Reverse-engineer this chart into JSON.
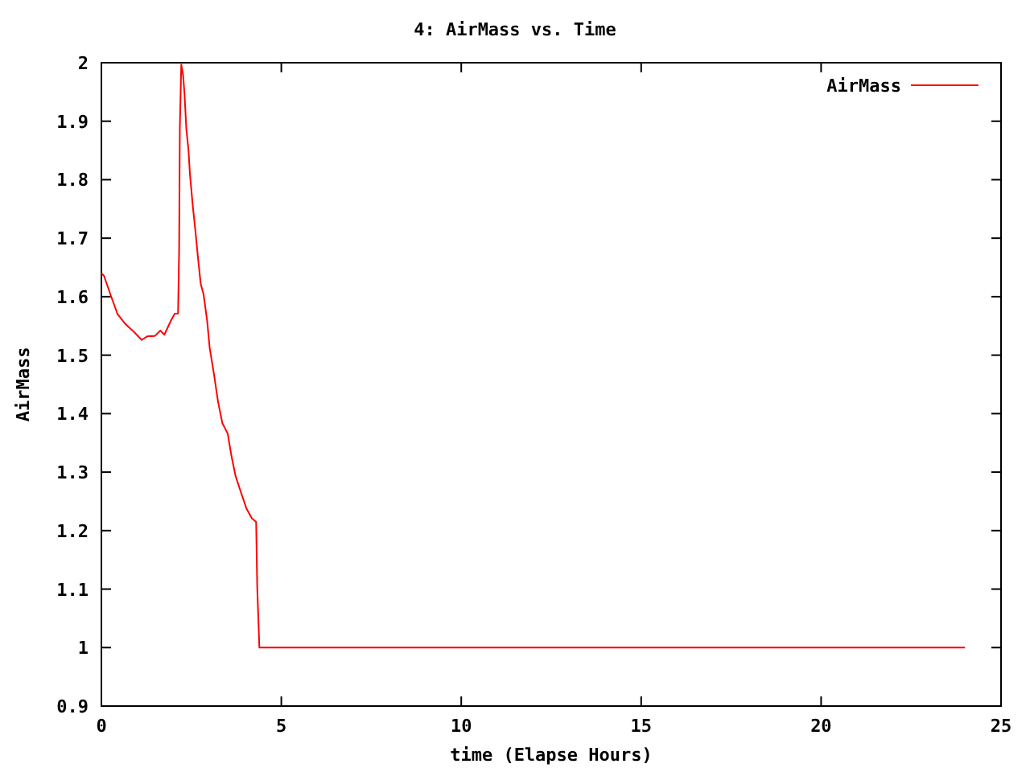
{
  "chart_data": {
    "type": "line",
    "title": "4: AirMass vs. Time",
    "xlabel": "time (Elapse Hours)",
    "ylabel": "AirMass",
    "xlim": [
      0,
      25
    ],
    "xticks": [
      0,
      5,
      10,
      15,
      20,
      25
    ],
    "ylim": [
      0.9,
      2
    ],
    "yticks": [
      0.9,
      1,
      1.1,
      1.2,
      1.3,
      1.4,
      1.5,
      1.6,
      1.7,
      1.8,
      1.9,
      2
    ],
    "grid": false,
    "legend": "top right",
    "series": [
      {
        "name": "AirMass",
        "color": "#ff0000",
        "x": [
          0,
          0.07,
          0.25,
          0.45,
          0.67,
          0.9,
          1.12,
          1.27,
          1.49,
          1.64,
          1.75,
          1.94,
          2.04,
          2.13,
          2.16,
          2.18,
          2.22,
          2.27,
          2.31,
          2.36,
          2.42,
          2.46,
          2.54,
          2.61,
          2.69,
          2.76,
          2.84,
          2.94,
          3.01,
          3.13,
          3.24,
          3.36,
          3.51,
          3.61,
          3.73,
          3.88,
          4.03,
          4.18,
          4.3,
          4.33,
          4.39,
          24
        ],
        "values": [
          1.64,
          1.636,
          1.604,
          1.57,
          1.553,
          1.54,
          1.526,
          1.532,
          1.533,
          1.542,
          1.535,
          1.56,
          1.571,
          1.571,
          1.677,
          1.889,
          1.997,
          1.979,
          1.947,
          1.887,
          1.851,
          1.81,
          1.755,
          1.714,
          1.663,
          1.622,
          1.604,
          1.558,
          1.512,
          1.467,
          1.421,
          1.384,
          1.366,
          1.329,
          1.293,
          1.265,
          1.238,
          1.221,
          1.215,
          1.105,
          1.0,
          1.0
        ]
      }
    ]
  }
}
